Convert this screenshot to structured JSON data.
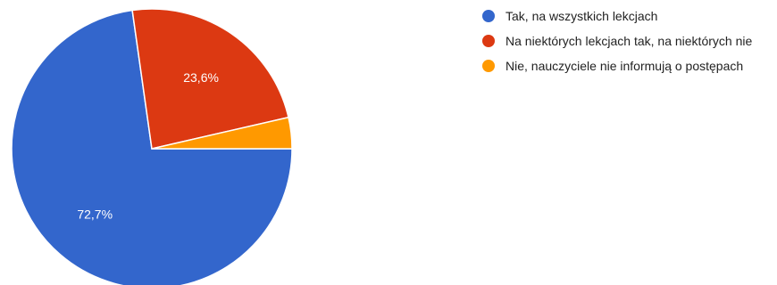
{
  "chart_data": {
    "type": "pie",
    "title": "",
    "start_angle_deg": 90,
    "slices": [
      {
        "label": "Tak, na wszystkich lekcjach",
        "value": 72.7,
        "value_label": "72,7%",
        "color": "#3366CC",
        "show_label": true
      },
      {
        "label": "Na niektórych lekcjach tak, na niektórych nie",
        "value": 23.6,
        "value_label": "23,6%",
        "color": "#DC3912",
        "show_label": true
      },
      {
        "label": "Nie, nauczyciele nie informują o postępach",
        "value": 3.6,
        "value_label": "",
        "color": "#FF9900",
        "show_label": false
      }
    ],
    "legend": {
      "position": "right"
    }
  }
}
